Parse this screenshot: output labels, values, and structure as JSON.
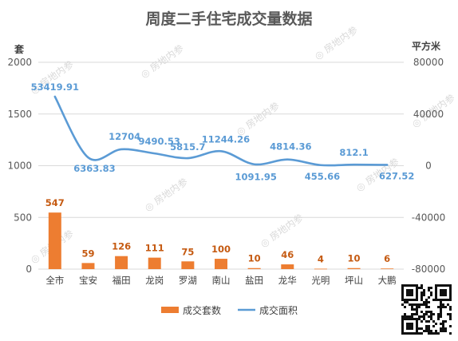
{
  "chart_data": {
    "type": "bar",
    "title": "周度二手住宅成交量数据",
    "left_unit": "套",
    "right_unit": "平方米",
    "categories": [
      "全市",
      "宝安",
      "福田",
      "龙岗",
      "罗湖",
      "南山",
      "盐田",
      "龙华",
      "光明",
      "坪山",
      "大鹏"
    ],
    "series": [
      {
        "name": "成交套数",
        "kind": "bar",
        "axis": "left",
        "color": "#ed7d31",
        "values": [
          547,
          59,
          126,
          111,
          75,
          100,
          10,
          46,
          4,
          10,
          6
        ]
      },
      {
        "name": "成交面积",
        "kind": "line",
        "axis": "right",
        "color": "#5b9bd5",
        "values": [
          53419.91,
          6363.83,
          12704,
          9490.53,
          5815.7,
          11244.26,
          1091.95,
          4814.36,
          455.66,
          812.1,
          627.52
        ]
      }
    ],
    "left_axis": {
      "ylim": [
        0,
        2000
      ],
      "ticks": [
        "0",
        "500",
        "1000",
        "1500",
        "2000"
      ]
    },
    "right_axis": {
      "ylim": [
        -80000,
        80000
      ],
      "ticks": [
        "-80000",
        "-40000",
        "0",
        "40000",
        "80000"
      ]
    },
    "grid": true,
    "legend": "bottom-center"
  },
  "watermark": "房地内参"
}
